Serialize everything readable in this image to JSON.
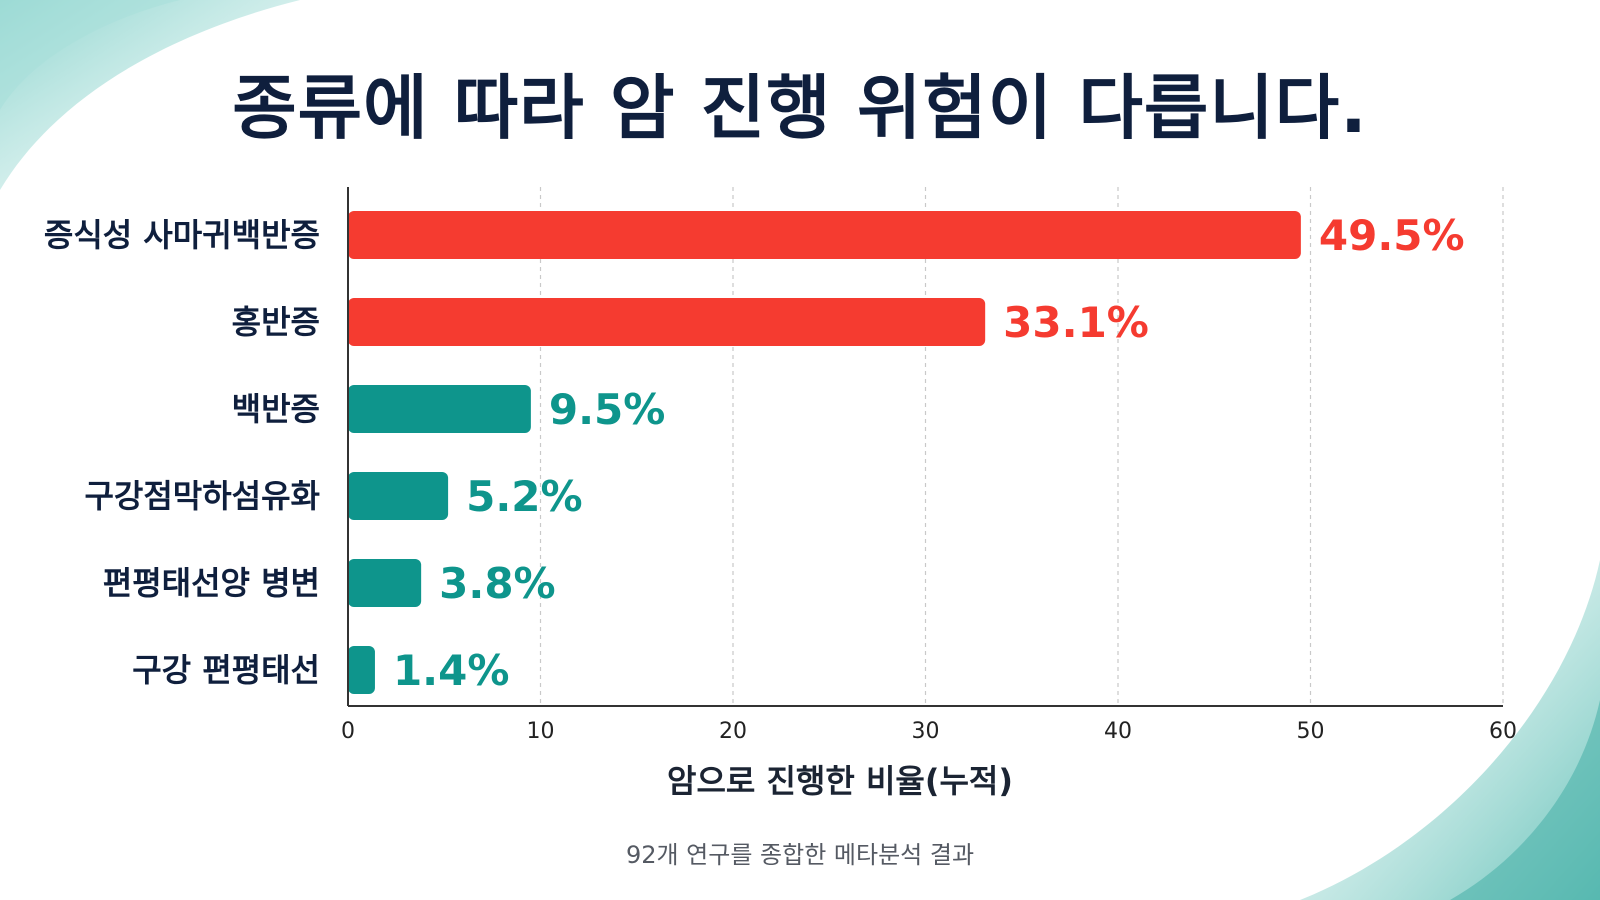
{
  "title": "종류에 따라 암 진행 위험이 다릅니다.",
  "note": "92개 연구를 종합한 메타분석 결과",
  "colors": {
    "high": "#f53b30",
    "low": "#0e958c",
    "title": "#0f1f3d",
    "axis": "#333333",
    "grid": "#c9c9c9"
  },
  "chart_data": {
    "type": "bar",
    "orientation": "horizontal",
    "categories": [
      "증식성 사마귀백반증",
      "홍반증",
      "백반증",
      "구강점막하섬유화",
      "편평태선양 병변",
      "구강 편평태선"
    ],
    "values": [
      49.5,
      33.1,
      9.5,
      5.2,
      3.8,
      1.4
    ],
    "value_labels": [
      "49.5%",
      "33.1%",
      "9.5%",
      "5.2%",
      "3.8%",
      "1.4%"
    ],
    "bar_color_groups": [
      "high",
      "high",
      "low",
      "low",
      "low",
      "low"
    ],
    "xlabel": "암으로 진행한 비율(누적)",
    "ylabel": "",
    "xlim": [
      0,
      60
    ],
    "xticks": [
      0,
      10,
      20,
      30,
      40,
      50,
      60
    ],
    "grid": "vertical dashed"
  }
}
